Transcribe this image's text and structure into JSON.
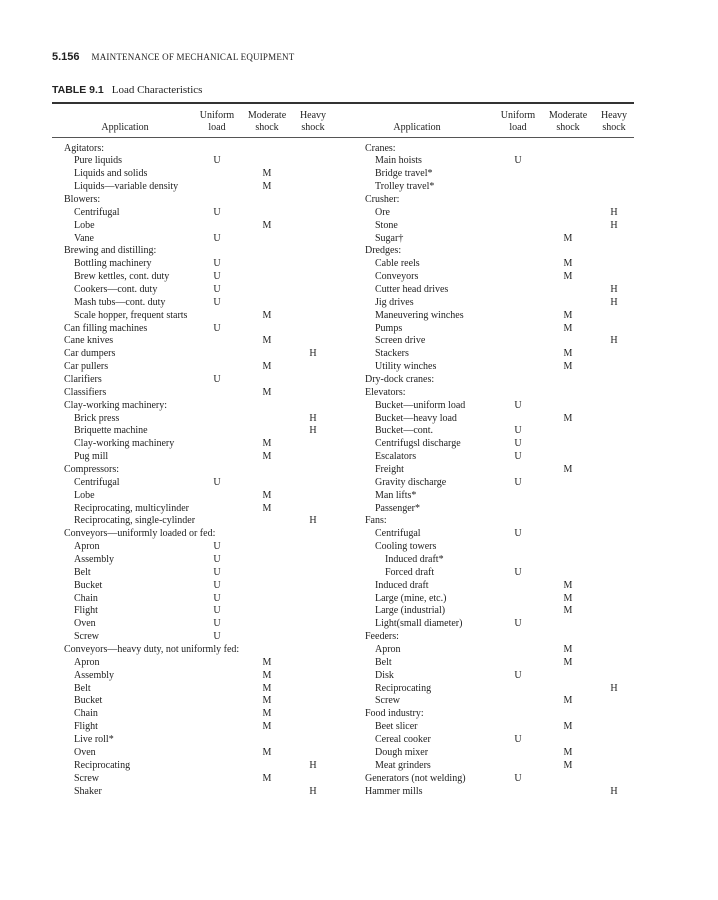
{
  "running_head": {
    "page_number": "5.156",
    "title": "MAINTENANCE OF MECHANICAL EQUIPMENT"
  },
  "table": {
    "label": "TABLE 9.1",
    "title": "Load Characteristics",
    "headers": {
      "application": "Application",
      "uniform": [
        "Uniform",
        "load"
      ],
      "moderate": [
        "Moderate",
        "shock"
      ],
      "heavy": [
        "Heavy",
        "shock"
      ]
    },
    "left_rows": [
      [
        "Agitators:",
        0,
        "",
        "",
        ""
      ],
      [
        "Pure liquids",
        1,
        "U",
        "",
        ""
      ],
      [
        "Liquids and solids",
        1,
        "",
        "M",
        ""
      ],
      [
        "Liquids—variable density",
        1,
        "",
        "M",
        ""
      ],
      [
        "Blowers:",
        0,
        "",
        "",
        ""
      ],
      [
        "Centrifugal",
        1,
        "U",
        "",
        ""
      ],
      [
        "Lobe",
        1,
        "",
        "M",
        ""
      ],
      [
        "Vane",
        1,
        "U",
        "",
        ""
      ],
      [
        "Brewing and distilling:",
        0,
        "",
        "",
        ""
      ],
      [
        "Bottling machinery",
        1,
        "U",
        "",
        ""
      ],
      [
        "Brew kettles, cont. duty",
        1,
        "U",
        "",
        ""
      ],
      [
        "Cookers—cont. duty",
        1,
        "U",
        "",
        ""
      ],
      [
        "Mash tubs—cont. duty",
        1,
        "U",
        "",
        ""
      ],
      [
        "Scale hopper, frequent starts",
        1,
        "",
        "M",
        ""
      ],
      [
        "Can filling machines",
        0,
        "U",
        "",
        ""
      ],
      [
        "Cane knives",
        0,
        "",
        "M",
        ""
      ],
      [
        "Car dumpers",
        0,
        "",
        "",
        "H"
      ],
      [
        "Car pullers",
        0,
        "",
        "M",
        ""
      ],
      [
        "Clarifiers",
        0,
        "U",
        "",
        ""
      ],
      [
        "Classifiers",
        0,
        "",
        "M",
        ""
      ],
      [
        "Clay-working machinery:",
        0,
        "",
        "",
        ""
      ],
      [
        "Brick press",
        1,
        "",
        "",
        "H"
      ],
      [
        "Briquette machine",
        1,
        "",
        "",
        "H"
      ],
      [
        "Clay-working machinery",
        1,
        "",
        "M",
        ""
      ],
      [
        "Pug mill",
        1,
        "",
        "M",
        ""
      ],
      [
        "Compressors:",
        0,
        "",
        "",
        ""
      ],
      [
        "Centrifugal",
        1,
        "U",
        "",
        ""
      ],
      [
        "Lobe",
        1,
        "",
        "M",
        ""
      ],
      [
        "Reciprocating, multicylinder",
        1,
        "",
        "M",
        ""
      ],
      [
        "Reciprocating, single-cylinder",
        1,
        "",
        "",
        "H"
      ],
      [
        "Conveyors—uniformly loaded or fed:",
        0,
        "",
        "",
        ""
      ],
      [
        "Apron",
        1,
        "U",
        "",
        ""
      ],
      [
        "Assembly",
        1,
        "U",
        "",
        ""
      ],
      [
        "Belt",
        1,
        "U",
        "",
        ""
      ],
      [
        "Bucket",
        1,
        "U",
        "",
        ""
      ],
      [
        "Chain",
        1,
        "U",
        "",
        ""
      ],
      [
        "Flight",
        1,
        "U",
        "",
        ""
      ],
      [
        "Oven",
        1,
        "U",
        "",
        ""
      ],
      [
        "Screw",
        1,
        "U",
        "",
        ""
      ],
      [
        "Conveyors—heavy duty, not uniformly fed:",
        0,
        "",
        "",
        ""
      ],
      [
        "Apron",
        1,
        "",
        "M",
        ""
      ],
      [
        "Assembly",
        1,
        "",
        "M",
        ""
      ],
      [
        "Belt",
        1,
        "",
        "M",
        ""
      ],
      [
        "Bucket",
        1,
        "",
        "M",
        ""
      ],
      [
        "Chain",
        1,
        "",
        "M",
        ""
      ],
      [
        "Flight",
        1,
        "",
        "M",
        ""
      ],
      [
        "Live roll*",
        1,
        "",
        "",
        ""
      ],
      [
        "Oven",
        1,
        "",
        "M",
        ""
      ],
      [
        "Reciprocating",
        1,
        "",
        "",
        "H"
      ],
      [
        "Screw",
        1,
        "",
        "M",
        ""
      ],
      [
        "Shaker",
        1,
        "",
        "",
        "H"
      ]
    ],
    "right_rows": [
      [
        "Cranes:",
        0,
        "",
        "",
        ""
      ],
      [
        "Main hoists",
        1,
        "U",
        "",
        ""
      ],
      [
        "Bridge travel*",
        1,
        "",
        "",
        ""
      ],
      [
        "Trolley travel*",
        1,
        "",
        "",
        ""
      ],
      [
        "Crusher:",
        0,
        "",
        "",
        ""
      ],
      [
        "Ore",
        1,
        "",
        "",
        "H"
      ],
      [
        "Stone",
        1,
        "",
        "",
        "H"
      ],
      [
        "Sugar†",
        1,
        "",
        "M",
        ""
      ],
      [
        "Dredges:",
        0,
        "",
        "",
        ""
      ],
      [
        "Cable reels",
        1,
        "",
        "M",
        ""
      ],
      [
        "Conveyors",
        1,
        "",
        "M",
        ""
      ],
      [
        "Cutter head drives",
        1,
        "",
        "",
        "H"
      ],
      [
        "Jig drives",
        1,
        "",
        "",
        "H"
      ],
      [
        "Maneuvering winches",
        1,
        "",
        "M",
        ""
      ],
      [
        "Pumps",
        1,
        "",
        "M",
        ""
      ],
      [
        "Screen drive",
        1,
        "",
        "",
        "H"
      ],
      [
        "Stackers",
        1,
        "",
        "M",
        ""
      ],
      [
        "Utility winches",
        1,
        "",
        "M",
        ""
      ],
      [
        "Dry-dock cranes:",
        0,
        "",
        "",
        ""
      ],
      [
        "Elevators:",
        0,
        "",
        "",
        ""
      ],
      [
        "Bucket—uniform load",
        1,
        "U",
        "",
        ""
      ],
      [
        "Bucket—heavy load",
        1,
        "",
        "M",
        ""
      ],
      [
        "Bucket—cont.",
        1,
        "U",
        "",
        ""
      ],
      [
        "Centrifugsl discharge",
        1,
        "U",
        "",
        ""
      ],
      [
        "Escalators",
        1,
        "U",
        "",
        ""
      ],
      [
        "Freight",
        1,
        "",
        "M",
        ""
      ],
      [
        "Gravity discharge",
        1,
        "U",
        "",
        ""
      ],
      [
        "Man lifts*",
        1,
        "",
        "",
        ""
      ],
      [
        "Passenger*",
        1,
        "",
        "",
        ""
      ],
      [
        "Fans:",
        0,
        "",
        "",
        ""
      ],
      [
        "Centrifugal",
        1,
        "U",
        "",
        ""
      ],
      [
        "Cooling towers",
        1,
        "",
        "",
        ""
      ],
      [
        "Induced draft*",
        2,
        "",
        "",
        ""
      ],
      [
        "Forced draft",
        2,
        "U",
        "",
        ""
      ],
      [
        "Induced draft",
        1,
        "",
        "M",
        ""
      ],
      [
        "Large (mine, etc.)",
        1,
        "",
        "M",
        ""
      ],
      [
        "Large (industrial)",
        1,
        "",
        "M",
        ""
      ],
      [
        "Light(small diameter)",
        1,
        "U",
        "",
        ""
      ],
      [
        "Feeders:",
        0,
        "",
        "",
        ""
      ],
      [
        "Apron",
        1,
        "",
        "M",
        ""
      ],
      [
        "Belt",
        1,
        "",
        "M",
        ""
      ],
      [
        "Disk",
        1,
        "U",
        "",
        ""
      ],
      [
        "Reciprocating",
        1,
        "",
        "",
        "H"
      ],
      [
        "Screw",
        1,
        "",
        "M",
        ""
      ],
      [
        "Food industry:",
        0,
        "",
        "",
        ""
      ],
      [
        "Beet slicer",
        1,
        "",
        "M",
        ""
      ],
      [
        "Cereal cooker",
        1,
        "U",
        "",
        ""
      ],
      [
        "Dough mixer",
        1,
        "",
        "M",
        ""
      ],
      [
        "Meat grinders",
        1,
        "",
        "M",
        ""
      ],
      [
        "Generators (not welding)",
        0,
        "U",
        "",
        ""
      ],
      [
        "Hammer mills",
        0,
        "",
        "",
        "H"
      ]
    ]
  }
}
